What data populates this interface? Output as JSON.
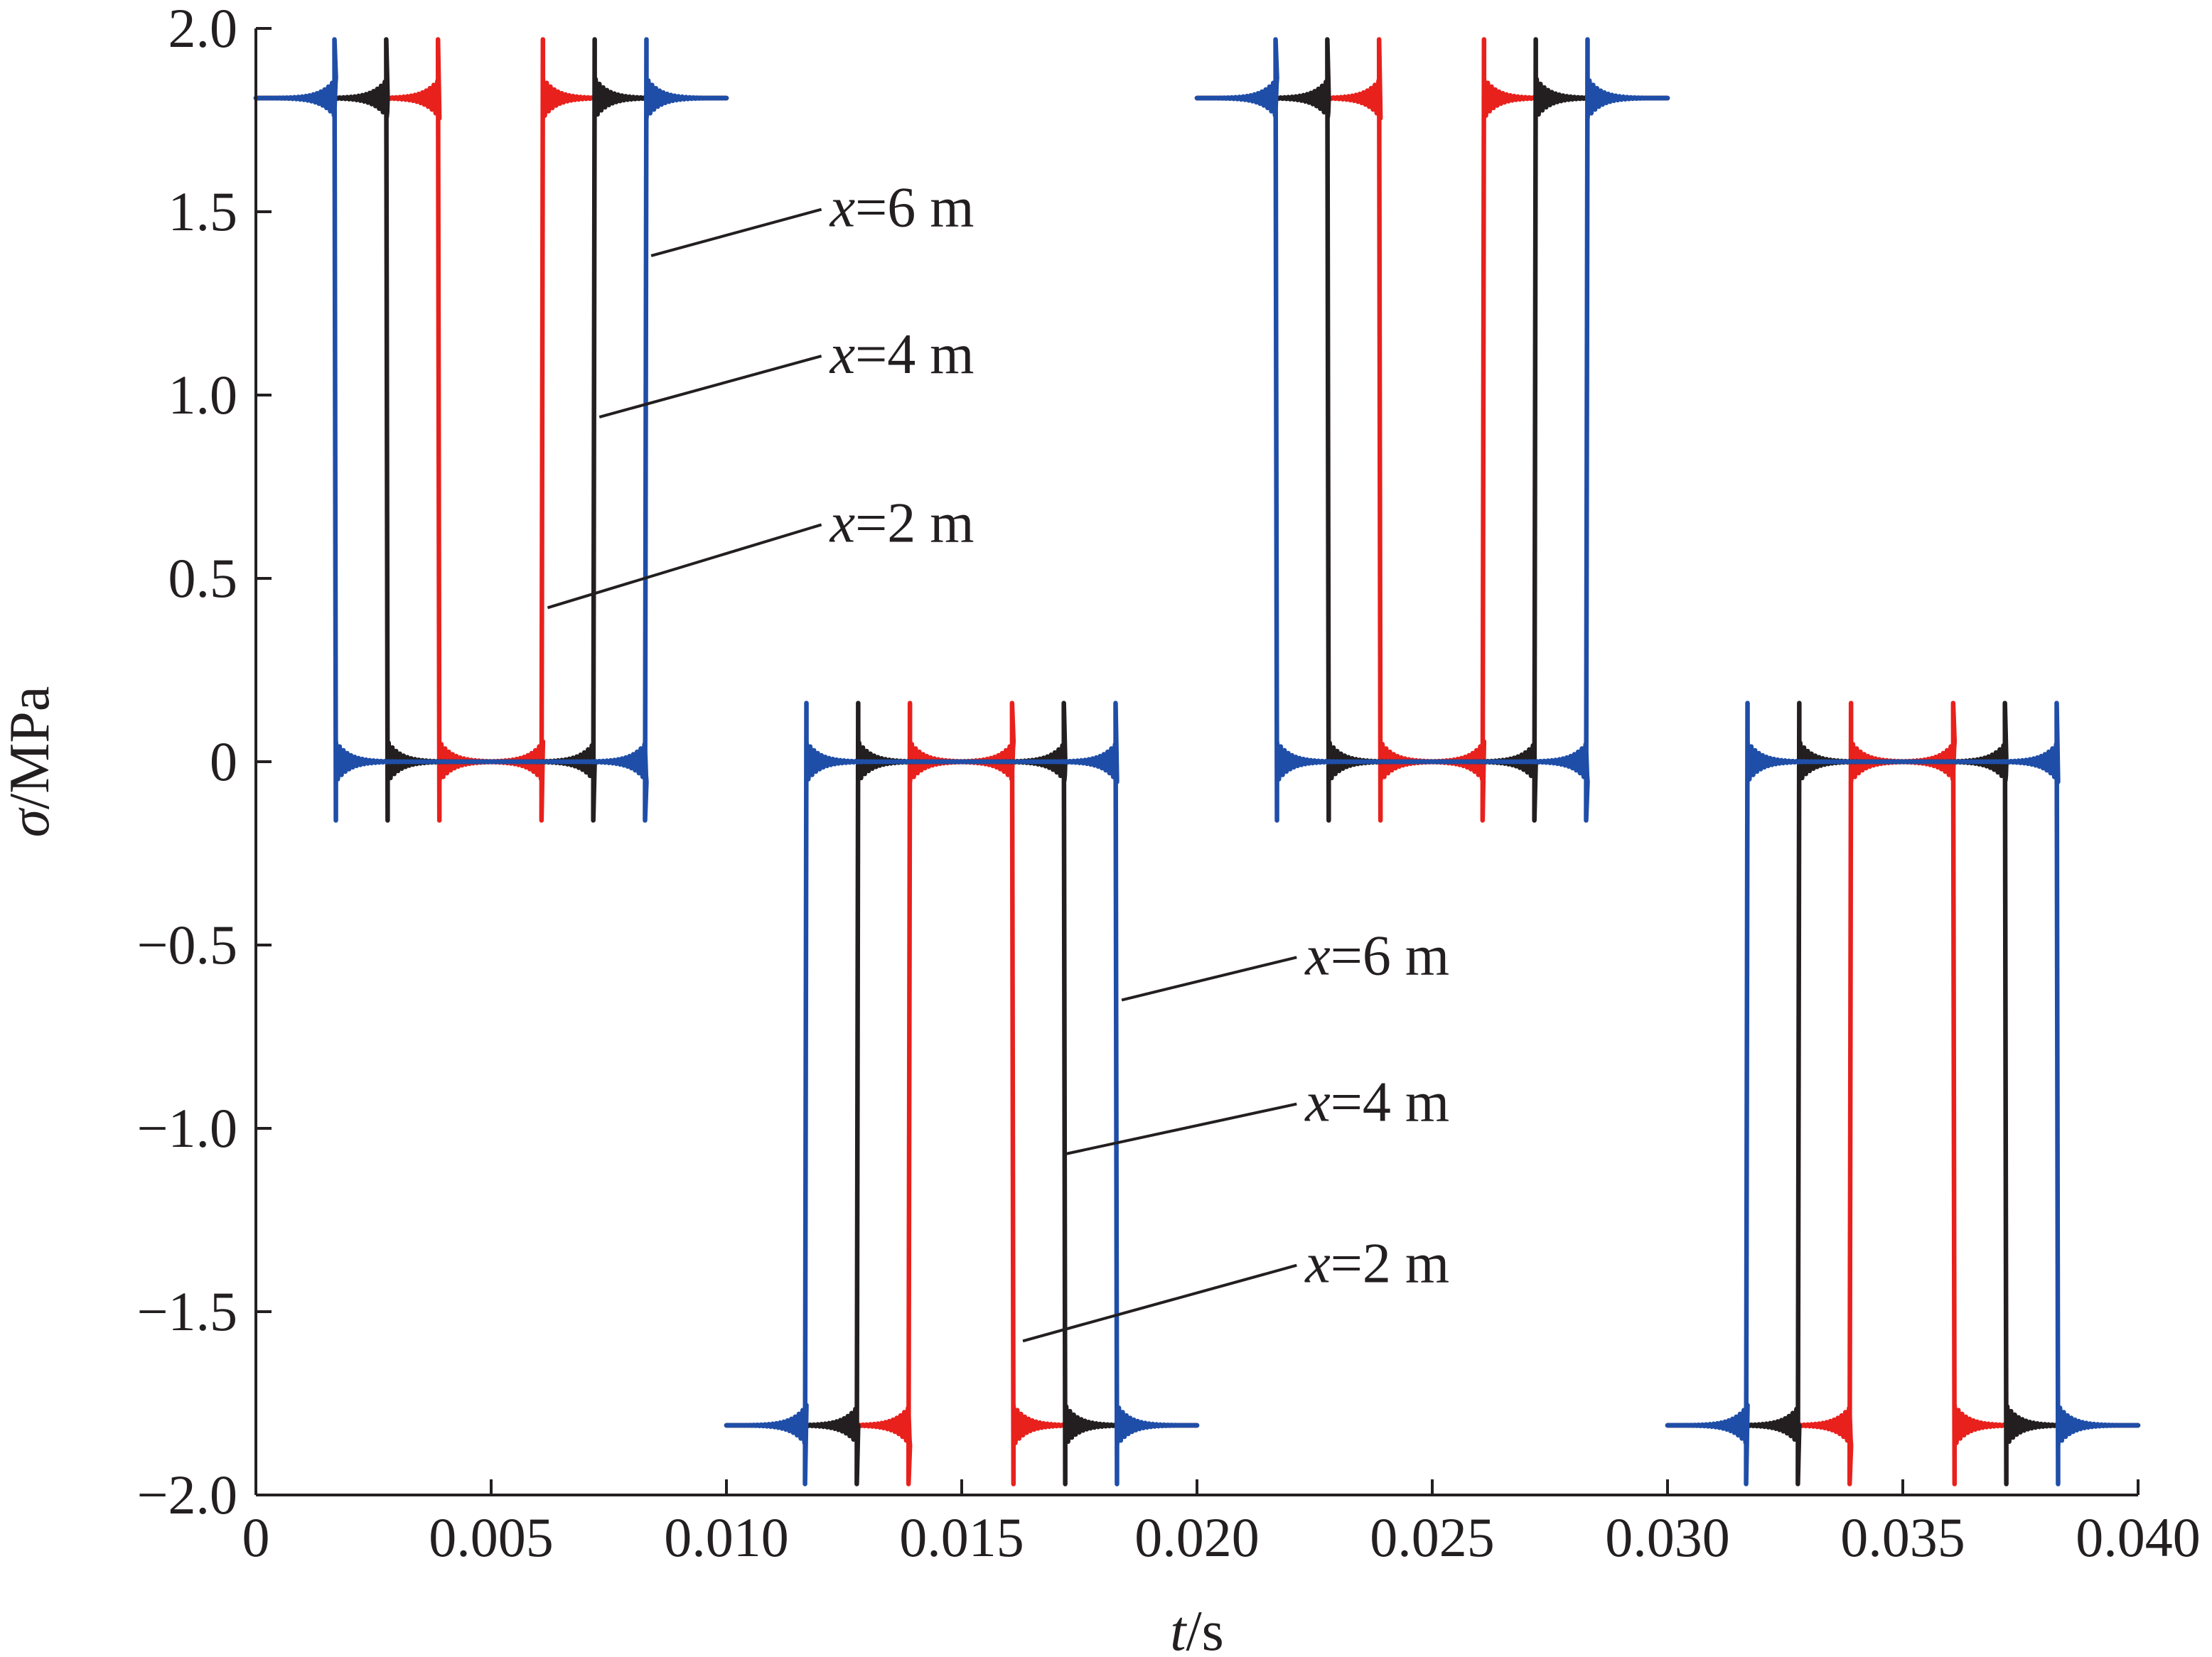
{
  "chart_data": {
    "type": "line",
    "title": "",
    "xlabel": {
      "var": "t",
      "unit": "/s"
    },
    "ylabel": {
      "var": "σ",
      "unit": "/MPa"
    },
    "xlim": [
      0,
      0.04
    ],
    "ylim": [
      -2.0,
      2.0
    ],
    "xticks": [
      "0",
      "0.005",
      "0.010",
      "0.015",
      "0.020",
      "0.025",
      "0.030",
      "0.035",
      "0.040"
    ],
    "yticks": [
      "2.0",
      "1.5",
      "1.0",
      "0.5",
      "0",
      "−0.5",
      "−1.0",
      "−1.5",
      "−2.0"
    ],
    "grid": false,
    "legend": "none",
    "baseline_high": 1.81,
    "baseline_low": -1.81,
    "overshoot": 0.16,
    "series": [
      {
        "name": "x=2 m",
        "color": "#e8211d",
        "half_period_s": 0.01,
        "segments": [
          {
            "t0": 0.0,
            "t1": 0.01,
            "level": 1.81,
            "transitions": [
              {
                "t": 0.0039,
                "to": 0
              },
              {
                "t": 0.0061,
                "to": 1.81
              }
            ]
          },
          {
            "t0": 0.01,
            "t1": 0.02,
            "level": -1.81,
            "transitions": [
              {
                "t": 0.0139,
                "to": 0
              },
              {
                "t": 0.0161,
                "to": -1.81
              }
            ]
          },
          {
            "t0": 0.02,
            "t1": 0.03,
            "level": 1.81,
            "transitions": [
              {
                "t": 0.0239,
                "to": 0
              },
              {
                "t": 0.0261,
                "to": 1.81
              }
            ]
          },
          {
            "t0": 0.03,
            "t1": 0.04,
            "level": -1.81,
            "transitions": [
              {
                "t": 0.0339,
                "to": 0
              },
              {
                "t": 0.0361,
                "to": -1.81
              }
            ]
          }
        ]
      },
      {
        "name": "x=4 m",
        "color": "#231f20",
        "half_period_s": 0.01,
        "segments": [
          {
            "t0": 0.0,
            "t1": 0.01,
            "level": 1.81,
            "transitions": [
              {
                "t": 0.0028,
                "to": 0
              },
              {
                "t": 0.0072,
                "to": 1.81
              }
            ]
          },
          {
            "t0": 0.01,
            "t1": 0.02,
            "level": -1.81,
            "transitions": [
              {
                "t": 0.0128,
                "to": 0
              },
              {
                "t": 0.0172,
                "to": -1.81
              }
            ]
          },
          {
            "t0": 0.02,
            "t1": 0.03,
            "level": 1.81,
            "transitions": [
              {
                "t": 0.0228,
                "to": 0
              },
              {
                "t": 0.0272,
                "to": 1.81
              }
            ]
          },
          {
            "t0": 0.03,
            "t1": 0.04,
            "level": -1.81,
            "transitions": [
              {
                "t": 0.0328,
                "to": 0
              },
              {
                "t": 0.0372,
                "to": -1.81
              }
            ]
          }
        ]
      },
      {
        "name": "x=6 m",
        "color": "#1f4ea8",
        "half_period_s": 0.01,
        "segments": [
          {
            "t0": 0.0,
            "t1": 0.01,
            "level": 1.81,
            "transitions": [
              {
                "t": 0.0017,
                "to": 0
              },
              {
                "t": 0.0083,
                "to": 1.81
              }
            ]
          },
          {
            "t0": 0.01,
            "t1": 0.02,
            "level": -1.81,
            "transitions": [
              {
                "t": 0.0117,
                "to": 0
              },
              {
                "t": 0.0183,
                "to": -1.81
              }
            ]
          },
          {
            "t0": 0.02,
            "t1": 0.03,
            "level": 1.81,
            "transitions": [
              {
                "t": 0.0217,
                "to": 0
              },
              {
                "t": 0.0283,
                "to": 1.81
              }
            ]
          },
          {
            "t0": 0.03,
            "t1": 0.04,
            "level": -1.81,
            "transitions": [
              {
                "t": 0.0317,
                "to": 0
              },
              {
                "t": 0.0383,
                "to": -1.81
              }
            ]
          }
        ]
      }
    ],
    "annotations": [
      {
        "var": "x",
        "text": "=6 m",
        "series": "x=6 m",
        "label_at": [
          0.0122,
          1.46
        ],
        "points_to": [
          0.0084,
          1.38
        ]
      },
      {
        "var": "x",
        "text": "=4 m",
        "series": "x=4 m",
        "label_at": [
          0.0122,
          1.06
        ],
        "points_to": [
          0.0073,
          0.94
        ]
      },
      {
        "var": "x",
        "text": "=2 m",
        "series": "x=2 m",
        "label_at": [
          0.0122,
          0.6
        ],
        "points_to": [
          0.0062,
          0.42
        ]
      },
      {
        "var": "x",
        "text": "=6 m",
        "series": "x=6 m",
        "label_at": [
          0.0223,
          -0.58
        ],
        "points_to": [
          0.0184,
          -0.65
        ]
      },
      {
        "var": "x",
        "text": "=4 m",
        "series": "x=4 m",
        "label_at": [
          0.0223,
          -0.98
        ],
        "points_to": [
          0.0172,
          -1.07
        ]
      },
      {
        "var": "x",
        "text": "=2 m",
        "series": "x=2 m",
        "label_at": [
          0.0223,
          -1.42
        ],
        "points_to": [
          0.0163,
          -1.58
        ]
      }
    ]
  }
}
